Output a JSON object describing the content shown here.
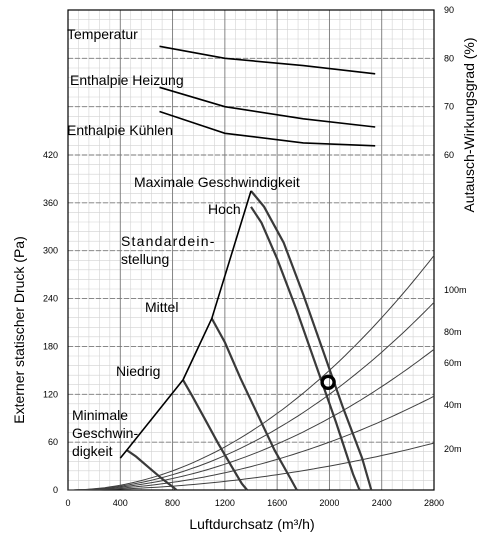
{
  "chart_data": {
    "type": "line",
    "title": "",
    "xlabel": "Luftdurchsatz (m³/h)",
    "ylabel": "Externer statischer Druck (Pa)",
    "y2label": "Autausch-Wirkungsgrad (%)",
    "xlim": [
      0,
      2800
    ],
    "ylim": [
      0,
      420
    ],
    "y2lim": [
      60,
      90
    ],
    "x_ticks": [
      "0",
      "400",
      "800",
      "1200",
      "1600",
      "2000",
      "2400",
      "2800"
    ],
    "y_ticks": [
      "0",
      "60",
      "120",
      "180",
      "240",
      "300",
      "360",
      "420"
    ],
    "y2_ticks": [
      "60",
      "70",
      "80",
      "90"
    ],
    "grid": true,
    "annotations": {
      "temperatur": "Temperatur",
      "enthalpie_heizung": "Enthalpie Heizung",
      "enthalpie_kuehlen": "Enthalpie Kühlen",
      "max_speed": "Maximale Geschwindigkeit",
      "hoch": "Hoch",
      "standard_1": "Standardein-",
      "standard_2": "stellung",
      "mittel": "Mittel",
      "niedrig": "Niedrig",
      "min_1": "Minimale",
      "min_2": "Geschwin-",
      "min_3": "digkeit"
    },
    "efficiency_series": [
      {
        "name": "Temperatur",
        "x": [
          700,
          1200,
          1800,
          2350
        ],
        "y": [
          82.5,
          80.0,
          78.5,
          76.8
        ]
      },
      {
        "name": "Enthalpie Heizung",
        "x": [
          700,
          1200,
          1800,
          2350
        ],
        "y": [
          74.0,
          70.0,
          67.5,
          65.8
        ]
      },
      {
        "name": "Enthalpie Kühlen",
        "x": [
          700,
          1200,
          1800,
          2350
        ],
        "y": [
          69.0,
          64.5,
          62.5,
          61.9
        ]
      }
    ],
    "fan_curves": [
      {
        "name": "Maximale Geschwindigkeit",
        "x": [
          1400,
          1500,
          1650,
          1800,
          1950,
          2100,
          2250,
          2320
        ],
        "y": [
          375,
          355,
          310,
          245,
          175,
          105,
          40,
          0
        ]
      },
      {
        "name": "Hoch",
        "x": [
          1400,
          1480,
          1600,
          1750,
          1900,
          2050,
          2180,
          2230
        ],
        "y": [
          355,
          335,
          290,
          225,
          155,
          85,
          20,
          0
        ]
      },
      {
        "name": "Mittel",
        "x": [
          1100,
          1200,
          1320,
          1450,
          1580,
          1700,
          1750
        ],
        "y": [
          215,
          185,
          140,
          95,
          50,
          15,
          0
        ]
      },
      {
        "name": "Niedrig",
        "x": [
          880,
          950,
          1050,
          1150,
          1250,
          1330,
          1370
        ],
        "y": [
          138,
          118,
          88,
          58,
          30,
          8,
          0
        ]
      },
      {
        "name": "Minimale Geschwindigkeit",
        "x": [
          450,
          520,
          620,
          720,
          800,
          830
        ],
        "y": [
          50,
          42,
          28,
          14,
          4,
          0
        ]
      }
    ],
    "speed_envelope": {
      "x": [
        400,
        450,
        880,
        1100,
        1400
      ],
      "y": [
        40,
        50,
        138,
        215,
        375
      ]
    },
    "duct_curves": [
      {
        "name": "100m",
        "k": 3.75e-05
      },
      {
        "name": "80m",
        "k": 3e-05
      },
      {
        "name": "60m",
        "k": 2.25e-05
      },
      {
        "name": "40m",
        "k": 1.5e-05
      },
      {
        "name": "20m",
        "k": 7.5e-06
      }
    ],
    "duct_labels": [
      "100m",
      "80m",
      "60m",
      "40m",
      "20m"
    ],
    "operating_point": {
      "x": 1990,
      "y": 135
    },
    "colors": {
      "fan": "#3a3a3a",
      "envelope": "#000000",
      "efficiency": "#000000",
      "duct": "#404040",
      "grid_major": "#7a7a7a",
      "grid_minor": "#d2d2d2"
    }
  }
}
